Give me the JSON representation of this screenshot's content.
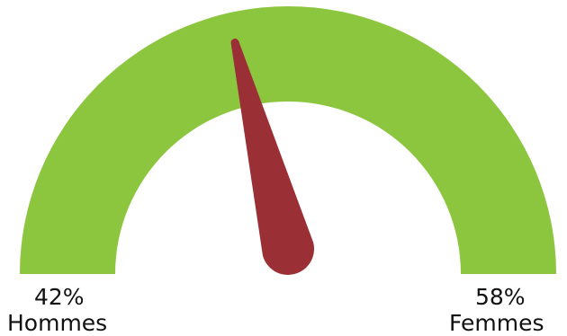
{
  "colors": {
    "arc": "#8cc63f",
    "needle": "#9a2f35"
  },
  "chart_data": {
    "type": "gauge",
    "min": 0,
    "max": 100,
    "needle_value": 42,
    "title": "",
    "segments": [
      {
        "label": "Hommes",
        "value": 42,
        "value_label": "42%",
        "side": "left"
      },
      {
        "label": "Femmes",
        "value": 58,
        "value_label": "58%",
        "side": "right"
      }
    ]
  }
}
